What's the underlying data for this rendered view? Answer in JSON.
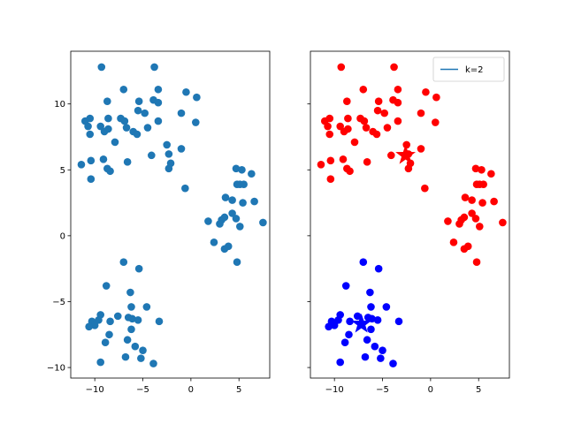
{
  "chart_data": [
    {
      "type": "scatter",
      "title": "",
      "xlabel": "",
      "ylabel": "",
      "xlim": [
        -12.5,
        8.2
      ],
      "ylim": [
        -10.8,
        14
      ],
      "xticks": [
        -10,
        -5,
        0,
        5
      ],
      "yticks": [
        -10,
        -5,
        0,
        5,
        10
      ],
      "xtick_labels": [
        "−10",
        "−5",
        "0",
        "5"
      ],
      "ytick_labels": [
        "−10",
        "−5",
        "0",
        "5",
        "10"
      ],
      "grid": false,
      "series": [
        {
          "color": "#1f77b4",
          "points": [
            [
              -9.3,
              12.8
            ],
            [
              -3.8,
              12.8
            ],
            [
              -7,
              11.1
            ],
            [
              -3.4,
              11.1
            ],
            [
              -0.5,
              10.9
            ],
            [
              0.6,
              10.5
            ],
            [
              -3.9,
              10.3
            ],
            [
              -8.7,
              10.2
            ],
            [
              -5.4,
              10.2
            ],
            [
              -3.4,
              10.1
            ],
            [
              -5.5,
              9.5
            ],
            [
              -11,
              8.7
            ],
            [
              -10.5,
              8.9
            ],
            [
              -10.7,
              8.3
            ],
            [
              -8.6,
              8.9
            ],
            [
              -7.3,
              8.9
            ],
            [
              -6.9,
              8.7
            ],
            [
              -4.8,
              9.3
            ],
            [
              -3.4,
              8.7
            ],
            [
              -1.0,
              9.3
            ],
            [
              0.5,
              8.6
            ],
            [
              -9.4,
              8.3
            ],
            [
              -9.0,
              7.9
            ],
            [
              -8.6,
              8.1
            ],
            [
              -6.7,
              8.2
            ],
            [
              -6.0,
              7.9
            ],
            [
              -5.6,
              7.7
            ],
            [
              -4.5,
              8.2
            ],
            [
              -10.5,
              7.7
            ],
            [
              -7.9,
              7.1
            ],
            [
              -2.5,
              6.9
            ],
            [
              -1.0,
              6.6
            ],
            [
              -2.3,
              6.2
            ],
            [
              -4.1,
              6.1
            ],
            [
              -10.4,
              5.7
            ],
            [
              -9.1,
              5.8
            ],
            [
              -6.6,
              5.6
            ],
            [
              -11.4,
              5.4
            ],
            [
              -2.1,
              5.5
            ],
            [
              -8.7,
              5.1
            ],
            [
              -8.4,
              4.9
            ],
            [
              -2.3,
              5.1
            ],
            [
              -10.4,
              4.3
            ],
            [
              -0.6,
              3.6
            ],
            [
              4.7,
              5.1
            ],
            [
              5.3,
              5.0
            ],
            [
              6.3,
              4.7
            ],
            [
              4.8,
              3.9
            ],
            [
              5.1,
              3.9
            ],
            [
              5.5,
              3.9
            ],
            [
              3.6,
              2.9
            ],
            [
              4.3,
              2.7
            ],
            [
              5.4,
              2.5
            ],
            [
              6.6,
              2.6
            ],
            [
              4.3,
              1.7
            ],
            [
              3.2,
              1.2
            ],
            [
              3.5,
              1.4
            ],
            [
              1.8,
              1.1
            ],
            [
              3.0,
              0.9
            ],
            [
              4.7,
              1.3
            ],
            [
              5.1,
              0.7
            ],
            [
              7.5,
              1.0
            ],
            [
              2.4,
              -0.5
            ],
            [
              3.9,
              -0.8
            ],
            [
              3.5,
              -1.0
            ],
            [
              4.8,
              -2.0
            ],
            [
              -7.0,
              -2.0
            ],
            [
              -5.4,
              -2.5
            ],
            [
              -8.8,
              -3.8
            ],
            [
              -6.3,
              -4.3
            ],
            [
              -6.2,
              -5.4
            ],
            [
              -4.6,
              -5.4
            ],
            [
              -9.4,
              -6.0
            ],
            [
              -7.6,
              -6.1
            ],
            [
              -3.3,
              -6.5
            ],
            [
              -6.5,
              -6.2
            ],
            [
              -6.1,
              -6.3
            ],
            [
              -5.5,
              -6.4
            ],
            [
              -8.4,
              -6.5
            ],
            [
              -9.6,
              -6.4
            ],
            [
              -10.3,
              -6.5
            ],
            [
              -10.0,
              -6.8
            ],
            [
              -10.6,
              -6.9
            ],
            [
              -6.2,
              -7.1
            ],
            [
              -8.5,
              -7.5
            ],
            [
              -6.6,
              -7.9
            ],
            [
              -8.9,
              -8.1
            ],
            [
              -5.8,
              -8.4
            ],
            [
              -5.0,
              -8.7
            ],
            [
              -6.8,
              -9.2
            ],
            [
              -5.2,
              -9.3
            ],
            [
              -9.4,
              -9.6
            ],
            [
              -3.9,
              -9.7
            ]
          ]
        }
      ]
    },
    {
      "type": "scatter",
      "title": "",
      "xlabel": "",
      "ylabel": "",
      "xlim": [
        -12.5,
        8.2
      ],
      "ylim": [
        -10.8,
        14
      ],
      "xticks": [
        -10,
        -5,
        0,
        5
      ],
      "yticks": [
        -10,
        -5,
        0,
        5,
        10
      ],
      "xtick_labels": [
        "−10",
        "−5",
        "0",
        "5"
      ],
      "ytick_labels": [],
      "grid": false,
      "legend": {
        "placement": "top-right",
        "label": "k=2",
        "color": "#1f77b4"
      },
      "series": [
        {
          "cluster": 1,
          "color": "#ff0000",
          "centroid": [
            -2.6,
            6.1
          ],
          "points": [
            [
              -9.3,
              12.8
            ],
            [
              -3.8,
              12.8
            ],
            [
              -7,
              11.1
            ],
            [
              -3.4,
              11.1
            ],
            [
              -0.5,
              10.9
            ],
            [
              0.6,
              10.5
            ],
            [
              -3.9,
              10.3
            ],
            [
              -8.7,
              10.2
            ],
            [
              -5.4,
              10.2
            ],
            [
              -3.4,
              10.1
            ],
            [
              -5.5,
              9.5
            ],
            [
              -11,
              8.7
            ],
            [
              -10.5,
              8.9
            ],
            [
              -10.7,
              8.3
            ],
            [
              -8.6,
              8.9
            ],
            [
              -7.3,
              8.9
            ],
            [
              -6.9,
              8.7
            ],
            [
              -4.8,
              9.3
            ],
            [
              -3.4,
              8.7
            ],
            [
              -1.0,
              9.3
            ],
            [
              0.5,
              8.6
            ],
            [
              -9.4,
              8.3
            ],
            [
              -9.0,
              7.9
            ],
            [
              -8.6,
              8.1
            ],
            [
              -6.7,
              8.2
            ],
            [
              -6.0,
              7.9
            ],
            [
              -5.6,
              7.7
            ],
            [
              -4.5,
              8.2
            ],
            [
              -10.5,
              7.7
            ],
            [
              -7.9,
              7.1
            ],
            [
              -2.5,
              6.9
            ],
            [
              -1.0,
              6.6
            ],
            [
              -2.3,
              6.2
            ],
            [
              -4.1,
              6.1
            ],
            [
              -10.4,
              5.7
            ],
            [
              -9.1,
              5.8
            ],
            [
              -6.6,
              5.6
            ],
            [
              -11.4,
              5.4
            ],
            [
              -2.1,
              5.5
            ],
            [
              -8.7,
              5.1
            ],
            [
              -8.4,
              4.9
            ],
            [
              -2.3,
              5.1
            ],
            [
              -10.4,
              4.3
            ],
            [
              -0.6,
              3.6
            ],
            [
              4.7,
              5.1
            ],
            [
              5.3,
              5.0
            ],
            [
              6.3,
              4.7
            ],
            [
              4.8,
              3.9
            ],
            [
              5.1,
              3.9
            ],
            [
              5.5,
              3.9
            ],
            [
              3.6,
              2.9
            ],
            [
              4.3,
              2.7
            ],
            [
              5.4,
              2.5
            ],
            [
              6.6,
              2.6
            ],
            [
              4.3,
              1.7
            ],
            [
              3.2,
              1.2
            ],
            [
              3.5,
              1.4
            ],
            [
              1.8,
              1.1
            ],
            [
              3.0,
              0.9
            ],
            [
              4.7,
              1.3
            ],
            [
              5.1,
              0.7
            ],
            [
              7.5,
              1.0
            ],
            [
              2.4,
              -0.5
            ],
            [
              3.9,
              -0.8
            ],
            [
              3.5,
              -1.0
            ],
            [
              4.8,
              -2.0
            ]
          ]
        },
        {
          "cluster": 2,
          "color": "#0000ff",
          "centroid": [
            -7.2,
            -6.7
          ],
          "points": [
            [
              -7.0,
              -2.0
            ],
            [
              -5.4,
              -2.5
            ],
            [
              -8.8,
              -3.8
            ],
            [
              -6.3,
              -4.3
            ],
            [
              -6.2,
              -5.4
            ],
            [
              -4.6,
              -5.4
            ],
            [
              -9.4,
              -6.0
            ],
            [
              -7.6,
              -6.1
            ],
            [
              -3.3,
              -6.5
            ],
            [
              -6.5,
              -6.2
            ],
            [
              -6.1,
              -6.3
            ],
            [
              -5.5,
              -6.4
            ],
            [
              -8.4,
              -6.5
            ],
            [
              -9.6,
              -6.4
            ],
            [
              -10.3,
              -6.5
            ],
            [
              -10.0,
              -6.8
            ],
            [
              -10.6,
              -6.9
            ],
            [
              -6.2,
              -7.1
            ],
            [
              -8.5,
              -7.5
            ],
            [
              -6.6,
              -7.9
            ],
            [
              -8.9,
              -8.1
            ],
            [
              -5.8,
              -8.4
            ],
            [
              -5.0,
              -8.7
            ],
            [
              -6.8,
              -9.2
            ],
            [
              -5.2,
              -9.3
            ],
            [
              -9.4,
              -9.6
            ],
            [
              -3.9,
              -9.7
            ]
          ]
        }
      ]
    }
  ]
}
